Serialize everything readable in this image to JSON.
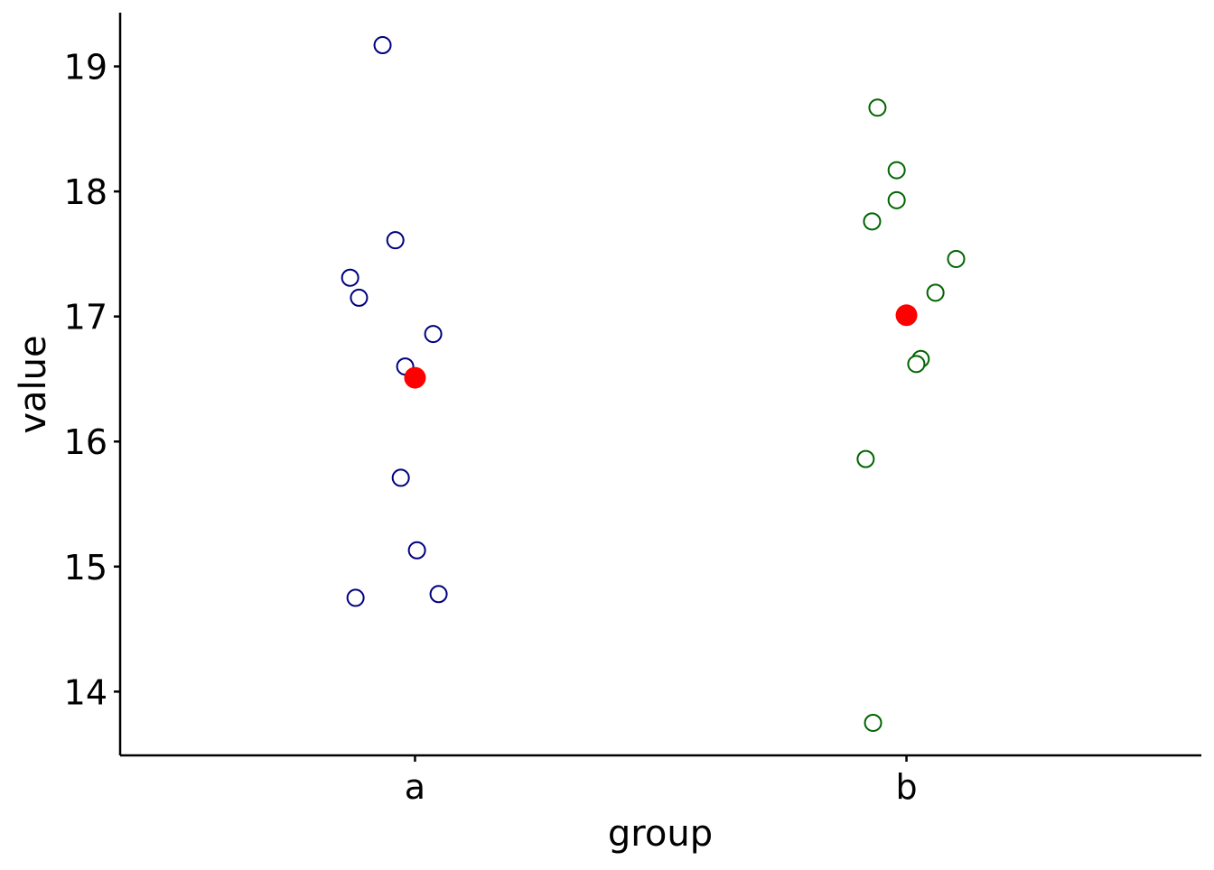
{
  "chart_data": {
    "type": "scatter",
    "title": "",
    "xlabel": "group",
    "ylabel": "value",
    "categories": [
      "a",
      "b"
    ],
    "xlim": [
      0.4,
      2.6
    ],
    "ylim": [
      13.49,
      19.43
    ],
    "yticks": [
      14,
      15,
      16,
      17,
      18,
      19
    ],
    "grid": false,
    "legend": "none",
    "series": [
      {
        "category": "a",
        "color": "#000080",
        "marker": "open-circle",
        "jitter": [
          -0.066,
          -0.04,
          -0.132,
          -0.114,
          0.037,
          -0.02,
          -0.029,
          0.004,
          -0.121,
          0.048
        ],
        "values": [
          19.17,
          17.61,
          17.31,
          17.15,
          16.86,
          16.6,
          15.71,
          15.13,
          14.75,
          14.78
        ],
        "mean": 16.51
      },
      {
        "category": "b",
        "color": "#006400",
        "marker": "open-circle",
        "jitter": [
          -0.059,
          -0.02,
          -0.02,
          -0.07,
          0.101,
          0.059,
          0.029,
          0.02,
          -0.083,
          -0.068
        ],
        "values": [
          18.67,
          18.17,
          17.93,
          17.76,
          17.46,
          17.19,
          16.66,
          16.62,
          15.86,
          13.75
        ],
        "mean": 17.01
      }
    ],
    "mean_color": "#ff0000"
  }
}
